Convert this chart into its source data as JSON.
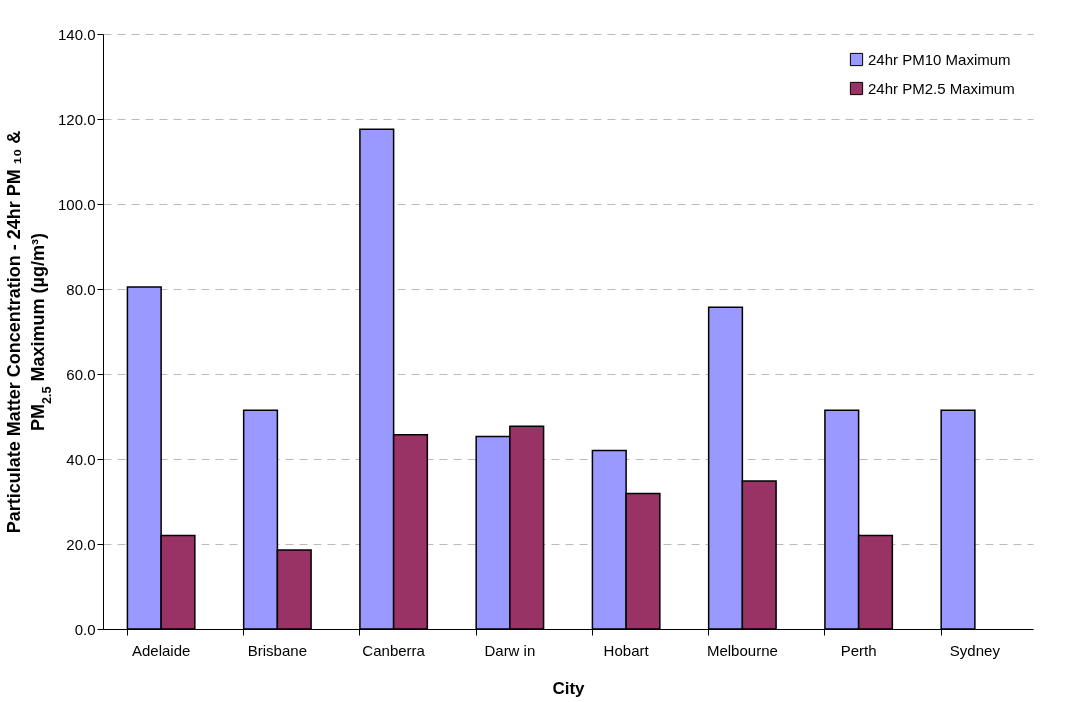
{
  "chart_data": {
    "type": "bar",
    "xlabel": "City",
    "ylabel": [
      "Particulate Matter Concentration - 24hr PM ₁₀ &",
      "PM$_{2.5}$ Maximum (µg/m³)"
    ],
    "categories": [
      "Adelaide",
      "Brisbane",
      "Canberra",
      "Darw in",
      "Hobart",
      "Melbourne",
      "Perth",
      "Sydney"
    ],
    "series": [
      {
        "name": "24hr PM10 Maximum",
        "color": "#9999ff",
        "values": [
          80.5,
          51.5,
          117.6,
          45.3,
          42.0,
          75.7,
          51.5,
          51.5
        ]
      },
      {
        "name": "24hr PM2.5 Maximum",
        "color": "#993366",
        "values": [
          22.0,
          18.6,
          45.7,
          47.7,
          31.9,
          34.8,
          22.0,
          null
        ]
      }
    ],
    "ylim": [
      0,
      140
    ],
    "yticks": [
      {
        "value": 0,
        "label": "0.0"
      },
      {
        "value": 20,
        "label": "20.0"
      },
      {
        "value": 40,
        "label": "40.0"
      },
      {
        "value": 60,
        "label": "60.0"
      },
      {
        "value": 80,
        "label": "80.0"
      },
      {
        "value": 100,
        "label": "100.0"
      },
      {
        "value": 120,
        "label": "120.0"
      },
      {
        "value": 140,
        "label": "140.0"
      }
    ],
    "grid": "y",
    "legend": "top right"
  }
}
